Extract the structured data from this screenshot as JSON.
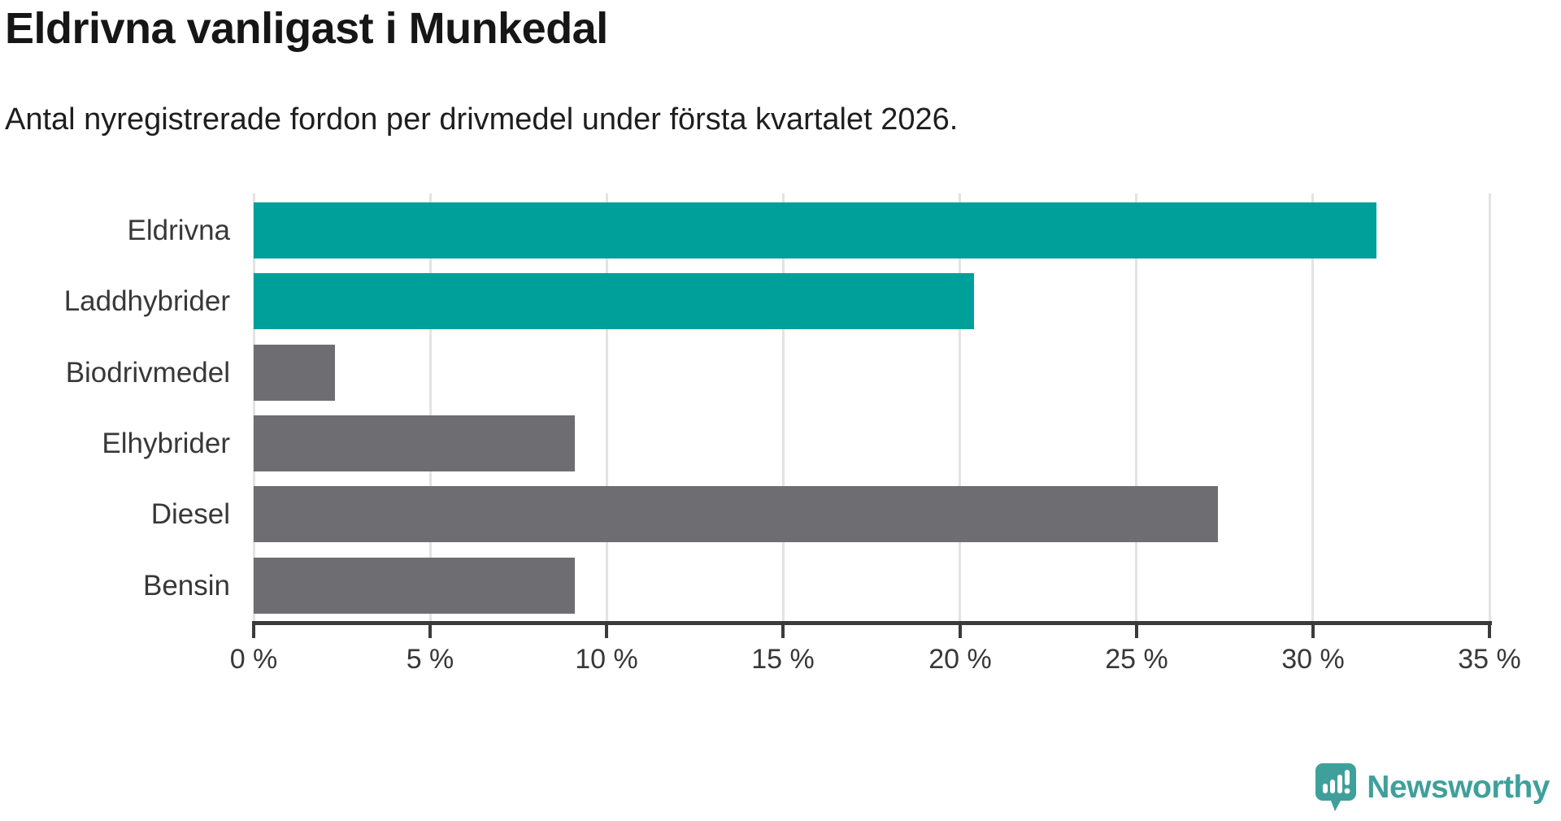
{
  "header": {
    "title": "Eldrivna vanligast i Munkedal",
    "subtitle": "Antal nyregistrerade fordon per drivmedel under första kvartalet 2026."
  },
  "chart_data": {
    "type": "bar",
    "orientation": "horizontal",
    "title": "Eldrivna vanligast i Munkedal",
    "subtitle": "Antal nyregistrerade fordon per drivmedel under första kvartalet 2026.",
    "categories": [
      "Eldrivna",
      "Laddhybrider",
      "Biodrivmedel",
      "Elhybrider",
      "Diesel",
      "Bensin"
    ],
    "values": [
      31.8,
      20.4,
      2.3,
      9.1,
      27.3,
      9.1
    ],
    "unit": "%",
    "xlim": [
      0,
      35
    ],
    "x_ticks": [
      0,
      5,
      10,
      15,
      20,
      25,
      30,
      35
    ],
    "x_tick_suffix": " %",
    "bar_colors": [
      "#00a09a",
      "#00a09a",
      "#6e6e72",
      "#6e6e72",
      "#6e6e72",
      "#6e6e72"
    ],
    "grid": "vertical-only",
    "legend": "none",
    "xlabel": "",
    "ylabel": ""
  },
  "colors": {
    "highlight_bar": "#00a09a",
    "default_bar": "#6e6e72",
    "gridline": "#e3e3e3",
    "axis": "#3b3b3b",
    "label_text": "#383838",
    "background": "#ffffff",
    "brand_teal": "#3fa09b"
  },
  "branding": {
    "logo_text": "Newsworthy",
    "logo_icon": "newsworthy-speech-bubble-chart-icon"
  }
}
